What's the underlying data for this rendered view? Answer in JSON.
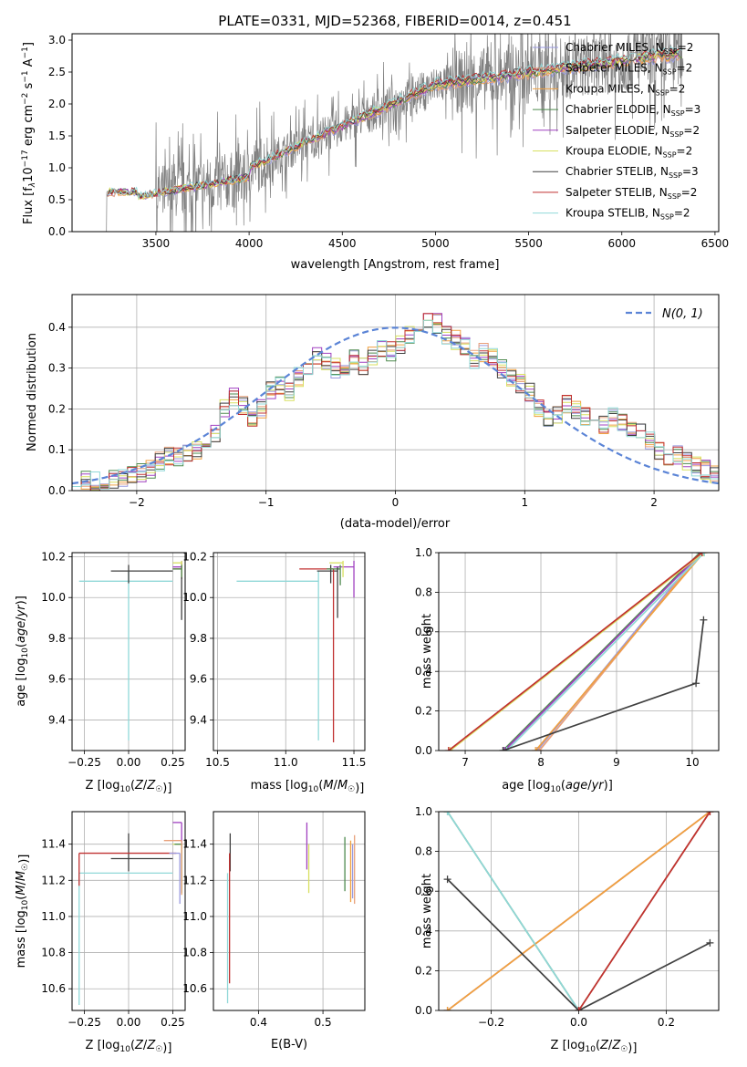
{
  "figure_title": "PLATE=0331, MJD=52368, FIBERID=0014, z=0.451",
  "chart_data": [
    {
      "id": "spectrum",
      "type": "line",
      "xlabel": "wavelength [Angstrom, rest frame]",
      "ylabel": "Flux [f$_\\lambda$10$^{-17}$ erg cm$^{-2}$ s$^{-1}$ A$^{-1}$]",
      "ylabel_parts": [
        "Flux [f",
        "λ",
        "10",
        "−17",
        " erg cm",
        "−2",
        " s",
        "−1",
        " A",
        "−1",
        "]"
      ],
      "xlim": [
        3050,
        6520
      ],
      "ylim": [
        0,
        3.1
      ],
      "xticks": [
        3500,
        4000,
        4500,
        5000,
        5500,
        6000,
        6500
      ],
      "yticks": [
        0.0,
        0.5,
        1.0,
        1.5,
        2.0,
        2.5,
        3.0
      ],
      "ytick_labels": [
        "0.0",
        "0.5",
        "1.0",
        "1.5",
        "2.0",
        "2.5",
        "3.0"
      ],
      "data_color": "#7f7f7f",
      "data_range": [
        3230,
        6330
      ],
      "model_color": "#e07b39",
      "legend_position": "upper-right",
      "grid": false
    },
    {
      "id": "residuals",
      "type": "histogram",
      "xlabel": "(data-model)/error",
      "ylabel": "Normed distribution",
      "xlim": [
        -2.5,
        2.5
      ],
      "ylim": [
        0,
        0.48
      ],
      "xticks": [
        -2,
        -1,
        0,
        1,
        2
      ],
      "xtick_labels": [
        "−2",
        "−1",
        "0",
        "1",
        "2"
      ],
      "yticks": [
        0.0,
        0.1,
        0.2,
        0.3,
        0.4
      ],
      "ytick_labels": [
        "0.0",
        "0.1",
        "0.2",
        "0.3",
        "0.4"
      ],
      "reference_curve": {
        "label": "N(0, 1)",
        "mean": 0,
        "sigma": 1,
        "color": "#5b84d6",
        "dashed": true
      },
      "bin_width": 0.1,
      "envelope": [
        0.035,
        0.028,
        0.022,
        0.025,
        0.027,
        0.03,
        0.035,
        0.045,
        0.055,
        0.07,
        0.085,
        0.08,
        0.09,
        0.1,
        0.12,
        0.14,
        0.2,
        0.23,
        0.21,
        0.18,
        0.2,
        0.25,
        0.26,
        0.24,
        0.28,
        0.3,
        0.33,
        0.32,
        0.3,
        0.29,
        0.32,
        0.3,
        0.33,
        0.35,
        0.34,
        0.36,
        0.38,
        0.4,
        0.42,
        0.41,
        0.38,
        0.37,
        0.35,
        0.32,
        0.34,
        0.33,
        0.3,
        0.28,
        0.26,
        0.24,
        0.2,
        0.17,
        0.19,
        0.21,
        0.2,
        0.18,
        0.19,
        0.16,
        0.18,
        0.17,
        0.15,
        0.14,
        0.12,
        0.1,
        0.08,
        0.09,
        0.07,
        0.06,
        0.05,
        0.04
      ],
      "legend_position": "upper-right",
      "grid": true
    },
    {
      "id": "age-vs-Z",
      "type": "errorbar",
      "xlabel": "Z [log10(Z/Z☉)]",
      "ylabel": "age [log10(age/yr)]",
      "xlim": [
        -0.32,
        0.32
      ],
      "ylim": [
        9.25,
        10.22
      ],
      "xticks": [
        -0.25,
        0.0,
        0.25
      ],
      "xtick_labels": [
        "−0.25",
        "0.00",
        "0.25"
      ],
      "yticks": [
        9.4,
        9.6,
        9.8,
        10.0,
        10.2
      ],
      "ytick_labels": [
        "9.4",
        "9.6",
        "9.8",
        "10.0",
        "10.2"
      ],
      "points": [
        {
          "series": 8,
          "x": 0.0,
          "xerr": [
            0.28,
            0.25
          ],
          "y": 10.08,
          "yerr": [
            0.78,
            0.05
          ]
        },
        {
          "series": 6,
          "x": 0.0,
          "xerr": [
            0.1,
            0.25
          ],
          "y": 10.13,
          "yerr": [
            0.06,
            0.03
          ]
        },
        {
          "series": 7,
          "x": 0.3,
          "xerr": [
            0.05,
            0.0
          ],
          "y": 10.14,
          "yerr": [
            0.05,
            0.03
          ]
        },
        {
          "series": 4,
          "x": 0.3,
          "xerr": [
            0.05,
            0.0
          ],
          "y": 10.15,
          "yerr": [
            0.05,
            0.03
          ]
        },
        {
          "series": 5,
          "x": 0.3,
          "xerr": [
            0.05,
            0.0
          ],
          "y": 10.17,
          "yerr": [
            0.07,
            0.01
          ]
        },
        {
          "series": 3,
          "x": 0.3,
          "xerr": [
            0.05,
            0.0
          ],
          "y": 10.14,
          "yerr": [
            0.05,
            0.02
          ]
        },
        {
          "series": 6,
          "x": 0.3,
          "xerr": [
            0.0,
            0.0
          ],
          "y": 10.0,
          "yerr": [
            0.11,
            0.1
          ]
        }
      ],
      "grid": true
    },
    {
      "id": "age-vs-mass",
      "type": "errorbar",
      "xlabel": "mass [log10(M/M☉)]",
      "ylabel": "",
      "xlim": [
        10.47,
        11.58
      ],
      "ylim": [
        9.25,
        10.22
      ],
      "xticks": [
        10.5,
        11.0,
        11.5
      ],
      "xtick_labels": [
        "10.5",
        "11.0",
        "11.5"
      ],
      "yticks": [
        9.4,
        9.6,
        9.8,
        10.0,
        10.2
      ],
      "ytick_labels": [
        "9.4",
        "9.6",
        "9.8",
        "10.0",
        "10.2"
      ],
      "points": [
        {
          "series": 8,
          "x": 11.24,
          "xerr": [
            0.6,
            0.0
          ],
          "y": 10.08,
          "yerr": [
            0.78,
            0.05
          ]
        },
        {
          "series": 6,
          "x": 11.33,
          "xerr": [
            0.1,
            0.05
          ],
          "y": 10.13,
          "yerr": [
            0.06,
            0.03
          ]
        },
        {
          "series": 7,
          "x": 11.35,
          "xerr": [
            0.25,
            0.0
          ],
          "y": 10.14,
          "yerr": [
            0.85,
            0.0
          ]
        },
        {
          "series": 4,
          "x": 11.5,
          "xerr": [
            0.15,
            0.0
          ],
          "y": 10.15,
          "yerr": [
            0.15,
            0.03
          ]
        },
        {
          "series": 5,
          "x": 11.42,
          "xerr": [
            0.1,
            0.0
          ],
          "y": 10.17,
          "yerr": [
            0.07,
            0.01
          ]
        },
        {
          "series": 3,
          "x": 11.4,
          "xerr": [
            0.1,
            0.0
          ],
          "y": 10.14,
          "yerr": [
            0.08,
            0.02
          ]
        },
        {
          "series": 6,
          "x": 11.38,
          "xerr": [
            0.0,
            0.0
          ],
          "y": 10.05,
          "yerr": [
            0.15,
            0.1
          ]
        }
      ],
      "grid": true
    },
    {
      "id": "mass-weight-vs-age",
      "type": "line",
      "xlabel": "age [log10(age/yr)]",
      "ylabel": "mass weight",
      "xlim": [
        6.65,
        10.35
      ],
      "ylim": [
        0,
        1.0
      ],
      "xticks": [
        7,
        8,
        9,
        10
      ],
      "xtick_labels": [
        "7",
        "8",
        "9",
        "10"
      ],
      "yticks": [
        0.0,
        0.2,
        0.4,
        0.6,
        0.8,
        1.0
      ],
      "ytick_labels": [
        "0.0",
        "0.2",
        "0.4",
        "0.6",
        "0.8",
        "1.0"
      ],
      "lines": [
        {
          "series": 0,
          "x": [
            7.95,
            10.1
          ],
          "y": [
            0.0,
            1.0
          ]
        },
        {
          "series": 1,
          "x": [
            7.98,
            10.12
          ],
          "y": [
            0.0,
            1.0
          ]
        },
        {
          "series": 2,
          "x": [
            7.93,
            10.15
          ],
          "y": [
            0.0,
            1.0
          ]
        },
        {
          "series": 3,
          "x": [
            7.5,
            10.1
          ],
          "y": [
            0.0,
            1.0
          ]
        },
        {
          "series": 4,
          "x": [
            7.52,
            10.12
          ],
          "y": [
            0.0,
            1.0
          ]
        },
        {
          "series": 5,
          "x": [
            6.8,
            10.15
          ],
          "y": [
            0.0,
            1.0
          ]
        },
        {
          "series": 8,
          "x": [
            7.55,
            10.16
          ],
          "y": [
            0.0,
            1.0
          ]
        },
        {
          "series": 6,
          "x": [
            7.5,
            10.05,
            10.15
          ],
          "y": [
            0.0,
            0.34,
            0.66
          ]
        },
        {
          "series": 7,
          "x": [
            6.78,
            10.13
          ],
          "y": [
            0.0,
            1.0
          ]
        }
      ],
      "grid": true
    },
    {
      "id": "mass-vs-Z",
      "type": "errorbar",
      "xlabel": "Z [log10(Z/Z☉)]",
      "ylabel": "mass [log10(M/M☉)]",
      "xlim": [
        -0.32,
        0.32
      ],
      "ylim": [
        10.48,
        11.58
      ],
      "xticks": [
        -0.25,
        0.0,
        0.25
      ],
      "xtick_labels": [
        "−0.25",
        "0.00",
        "0.25"
      ],
      "yticks": [
        10.6,
        10.8,
        11.0,
        11.2,
        11.4
      ],
      "ytick_labels": [
        "10.6",
        "10.8",
        "11.0",
        "11.2",
        "11.4"
      ],
      "points": [
        {
          "series": 8,
          "x": -0.28,
          "xerr": [
            0.0,
            0.53
          ],
          "y": 11.24,
          "yerr": [
            0.73,
            0.0
          ]
        },
        {
          "series": 6,
          "x": 0.0,
          "xerr": [
            0.1,
            0.25
          ],
          "y": 11.32,
          "yerr": [
            0.07,
            0.14
          ]
        },
        {
          "series": 7,
          "x": -0.28,
          "xerr": [
            0.0,
            0.55
          ],
          "y": 11.35,
          "yerr": [
            0.18,
            0.0
          ]
        },
        {
          "series": 4,
          "x": 0.3,
          "xerr": [
            0.05,
            0.0
          ],
          "y": 11.52,
          "yerr": [
            0.12,
            0.0
          ]
        },
        {
          "series": 5,
          "x": 0.3,
          "xerr": [
            0.05,
            0.0
          ],
          "y": 11.4,
          "yerr": [
            0.28,
            0.0
          ]
        },
        {
          "series": 3,
          "x": 0.3,
          "xerr": [
            0.04,
            0.0
          ],
          "y": 11.4,
          "yerr": [
            0.27,
            0.0
          ]
        },
        {
          "series": 1,
          "x": 0.3,
          "xerr": [
            0.1,
            0.0
          ],
          "y": 11.42,
          "yerr": [
            0.3,
            0.0
          ]
        },
        {
          "series": 0,
          "x": 0.29,
          "xerr": [
            0.06,
            0.0
          ],
          "y": 11.35,
          "yerr": [
            0.28,
            0.0
          ]
        }
      ],
      "grid": true
    },
    {
      "id": "mass-vs-EBV",
      "type": "errorbar",
      "xlabel": "E(B-V)",
      "ylabel": "",
      "xlim": [
        0.33,
        0.565
      ],
      "ylim": [
        10.48,
        11.58
      ],
      "xticks": [
        0.4,
        0.5
      ],
      "xtick_labels": [
        "0.4",
        "0.5"
      ],
      "yticks": [
        10.6,
        10.8,
        11.0,
        11.2,
        11.4
      ],
      "ytick_labels": [
        "10.6",
        "10.8",
        "11.0",
        "11.2",
        "11.4"
      ],
      "points": [
        {
          "series": 8,
          "x": 0.352,
          "xerr": [
            0,
            0
          ],
          "y": 11.24,
          "yerr": [
            0.72,
            0.0
          ]
        },
        {
          "series": 6,
          "x": 0.356,
          "xerr": [
            0,
            0
          ],
          "y": 11.32,
          "yerr": [
            0.07,
            0.14
          ]
        },
        {
          "series": 7,
          "x": 0.355,
          "xerr": [
            0,
            0
          ],
          "y": 11.35,
          "yerr": [
            0.72,
            0.0
          ]
        },
        {
          "series": 4,
          "x": 0.475,
          "xerr": [
            0,
            0
          ],
          "y": 11.4,
          "yerr": [
            0.14,
            0.12
          ]
        },
        {
          "series": 5,
          "x": 0.478,
          "xerr": [
            0,
            0
          ],
          "y": 11.4,
          "yerr": [
            0.27,
            0.0
          ]
        },
        {
          "series": 3,
          "x": 0.534,
          "xerr": [
            0,
            0
          ],
          "y": 11.32,
          "yerr": [
            0.18,
            0.12
          ]
        },
        {
          "series": 1,
          "x": 0.549,
          "xerr": [
            0,
            0
          ],
          "y": 11.35,
          "yerr": [
            0.28,
            0.1
          ]
        },
        {
          "series": 0,
          "x": 0.546,
          "xerr": [
            0,
            0
          ],
          "y": 11.3,
          "yerr": [
            0.2,
            0.1
          ]
        },
        {
          "series": 2,
          "x": 0.543,
          "xerr": [
            0,
            0
          ],
          "y": 11.3,
          "yerr": [
            0.22,
            0.12
          ]
        }
      ],
      "grid": true
    },
    {
      "id": "mass-weight-vs-Z",
      "type": "line",
      "xlabel": "Z [log10(Z/Z☉)]",
      "ylabel": "mass weight",
      "xlim": [
        -0.32,
        0.32
      ],
      "ylim": [
        0,
        1.0
      ],
      "xticks": [
        -0.2,
        0.0,
        0.2
      ],
      "xtick_labels": [
        "−0.2",
        "0.0",
        "0.2"
      ],
      "yticks": [
        0.0,
        0.2,
        0.4,
        0.6,
        0.8,
        1.0
      ],
      "ytick_labels": [
        "0.0",
        "0.2",
        "0.4",
        "0.6",
        "0.8",
        "1.0"
      ],
      "lines": [
        {
          "series": 0,
          "x": [
            -0.3,
            0.3
          ],
          "y": [
            0.0,
            1.0
          ]
        },
        {
          "series": 1,
          "x": [
            -0.3,
            0.3
          ],
          "y": [
            0.0,
            1.0
          ]
        },
        {
          "series": 2,
          "x": [
            -0.3,
            0.3
          ],
          "y": [
            0.0,
            1.0
          ]
        },
        {
          "series": 3,
          "x": [
            -0.3,
            0.0
          ],
          "y": [
            1.0,
            0.0
          ]
        },
        {
          "series": 4,
          "x": [
            0.0,
            0.3
          ],
          "y": [
            0.0,
            1.0
          ]
        },
        {
          "series": 5,
          "x": [
            0.0,
            0.3
          ],
          "y": [
            0.0,
            1.0
          ]
        },
        {
          "series": 8,
          "x": [
            -0.3,
            0.0
          ],
          "y": [
            1.0,
            0.0
          ]
        },
        {
          "series": 6,
          "x": [
            -0.3,
            0.0,
            0.3
          ],
          "y": [
            0.66,
            0.0,
            0.34
          ]
        },
        {
          "series": 7,
          "x": [
            0.0,
            0.3
          ],
          "y": [
            0.0,
            1.0
          ]
        }
      ],
      "grid": true
    }
  ],
  "series": [
    {
      "lib": "Chabrier MILES",
      "n": "2",
      "color": "#9a9ae0"
    },
    {
      "lib": "Salpeter MILES",
      "n": "2",
      "color": "#e8a07a"
    },
    {
      "lib": "Kroupa MILES",
      "n": "2",
      "color": "#f0a040"
    },
    {
      "lib": "Chabrier ELODIE",
      "n": "3",
      "color": "#4e8a4e"
    },
    {
      "lib": "Salpeter ELODIE",
      "n": "2",
      "color": "#a040c0"
    },
    {
      "lib": "Kroupa ELODIE",
      "n": "2",
      "color": "#d8e060"
    },
    {
      "lib": "Chabrier STELIB",
      "n": "3",
      "color": "#404040"
    },
    {
      "lib": "Salpeter STELIB",
      "n": "2",
      "color": "#c03030"
    },
    {
      "lib": "Kroupa STELIB",
      "n": "2",
      "color": "#90d8d8"
    }
  ],
  "legend_n_prefix": "N",
  "legend_n_sub": "SSP",
  "legend_n_suffix": "="
}
